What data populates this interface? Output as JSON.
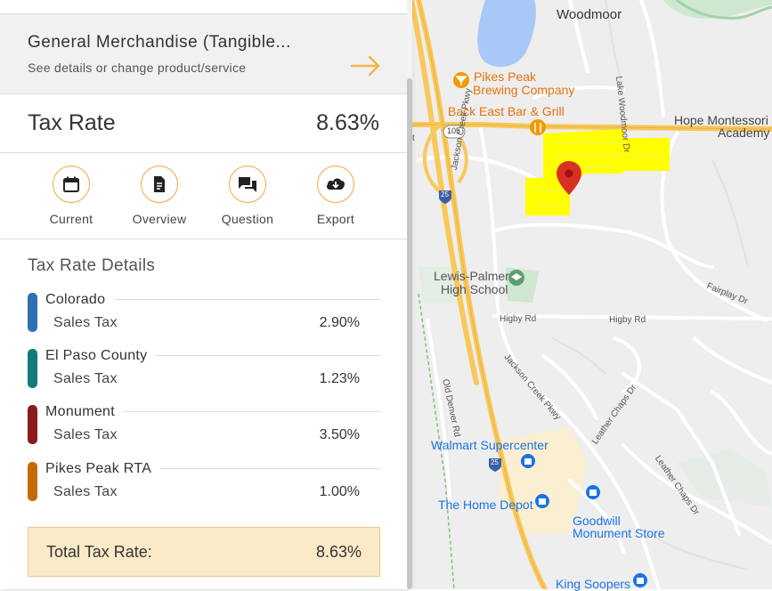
{
  "panel": {
    "product": {
      "title": "General Merchandise (Tangible...",
      "subtitle": "See details or change product/service",
      "arrow_icon": "arrow-right-icon"
    },
    "tax_rate": {
      "label": "Tax Rate",
      "value": "8.63%"
    },
    "actions": [
      {
        "label": "Current",
        "icon": "calendar-icon"
      },
      {
        "label": "Overview",
        "icon": "document-icon"
      },
      {
        "label": "Question",
        "icon": "chat-icon"
      },
      {
        "label": "Export",
        "icon": "cloud-download-icon"
      }
    ],
    "details_title": "Tax Rate Details",
    "jurisdictions": [
      {
        "name": "Colorado",
        "tax_label": "Sales Tax",
        "rate": "2.90%",
        "color": "#2f6fb3"
      },
      {
        "name": "El Paso County",
        "tax_label": "Sales Tax",
        "rate": "1.23%",
        "color": "#137a7a"
      },
      {
        "name": "Monument",
        "tax_label": "Sales Tax",
        "rate": "3.50%",
        "color": "#8b1a1a"
      },
      {
        "name": "Pikes Peak RTA",
        "tax_label": "Sales Tax",
        "rate": "1.00%",
        "color": "#c46a00"
      }
    ],
    "total": {
      "label": "Total Tax Rate:",
      "value": "8.63%"
    }
  },
  "map": {
    "labels": {
      "woodmoor": "Woodmoor",
      "pikes_peak_brewing_1": "Pikes Peak",
      "pikes_peak_brewing_2": "Brewing Company",
      "back_east": "Back East Bar & Grill",
      "hope_montessori_1": "Hope Montessori",
      "hope_montessori_2": "Academy",
      "lake_woodmoor_dr": "Lake Woodmoor Dr",
      "jackson_creek_pkwy": "Jackson Creek Pkwy",
      "jackson_creek_pkwy_2": "Jackson Creek Pkwy",
      "lewis_palmer_1": "Lewis-Palmer",
      "lewis_palmer_2": "High School",
      "higby_rd_1": "Higby Rd",
      "higby_rd_2": "Higby Rd",
      "fairplay_dr": "Fairplay Dr",
      "old_denver_rd": "Old Denver Rd",
      "walmart": "Walmart Supercenter",
      "home_depot": "The Home Depot",
      "goodwill_1": "Goodwill",
      "goodwill_2": "Monument Store",
      "king_soopers": "King Soopers",
      "leather_chaps_1": "Leather Chaps Dr",
      "leather_chaps_2": "Leather Chaps Dr",
      "route_105": "105",
      "i25_a": "25",
      "i25_b": "25",
      "edge_letter": "t"
    },
    "colors": {
      "highlight": "#ffff00",
      "pin": "#d93025",
      "highway": "#f9c85a",
      "water": "#a8c8f8",
      "poi_orange": "#f29900",
      "poi_blue": "#1a73e8",
      "poi_green": "#5f9e6e"
    }
  }
}
